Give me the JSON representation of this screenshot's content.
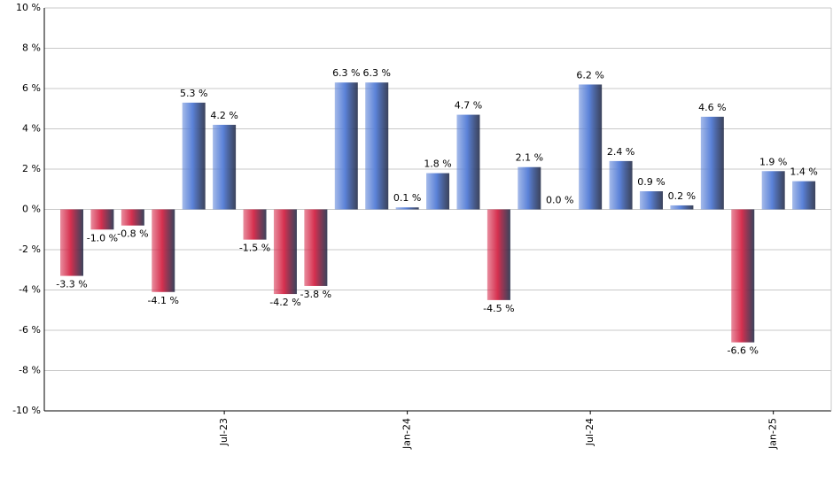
{
  "chart_data": {
    "type": "bar",
    "categories": [
      null,
      null,
      null,
      null,
      null,
      "Jul-23",
      null,
      null,
      null,
      null,
      null,
      "Jan-24",
      null,
      null,
      null,
      null,
      null,
      "Jul-24",
      null,
      null,
      null,
      null,
      null,
      "Jan-25",
      null
    ],
    "values": [
      -3.3,
      -1.0,
      -0.8,
      -4.1,
      5.3,
      4.2,
      -1.5,
      -4.2,
      -3.8,
      6.3,
      6.3,
      0.1,
      1.8,
      4.7,
      -4.5,
      2.1,
      0.0,
      6.2,
      2.4,
      0.9,
      0.2,
      4.6,
      -6.6,
      1.9,
      1.4
    ],
    "value_labels": [
      "-3.3 %",
      "-1.0 %",
      "-0.8 %",
      "-4.1 %",
      "5.3 %",
      "4.2 %",
      "-1.5 %",
      "-4.2 %",
      "-3.8 %",
      "6.3 %",
      "6.3 %",
      "0.1 %",
      "1.8 %",
      "4.7 %",
      "-4.5 %",
      "2.1 %",
      "0.0 %",
      "6.2 %",
      "2.4 %",
      "0.9 %",
      "0.2 %",
      "4.6 %",
      "-6.6 %",
      "1.9 %",
      "1.4 %"
    ],
    "positive_color": "#5b82d8",
    "negative_color": "#d6304f",
    "ylim": [
      -10,
      10
    ],
    "yticks": [
      {
        "value": -10,
        "label": "-10 %"
      },
      {
        "value": -8,
        "label": "-8 %"
      },
      {
        "value": -6,
        "label": "-6 %"
      },
      {
        "value": -4,
        "label": "-4 %"
      },
      {
        "value": -2,
        "label": "-2 %"
      },
      {
        "value": 0,
        "label": "0 %"
      },
      {
        "value": 2,
        "label": "2 %"
      },
      {
        "value": 4,
        "label": "4 %"
      },
      {
        "value": 6,
        "label": "6 %"
      },
      {
        "value": 8,
        "label": "8 %"
      },
      {
        "value": 10,
        "label": "10 %"
      }
    ],
    "grid": true
  }
}
